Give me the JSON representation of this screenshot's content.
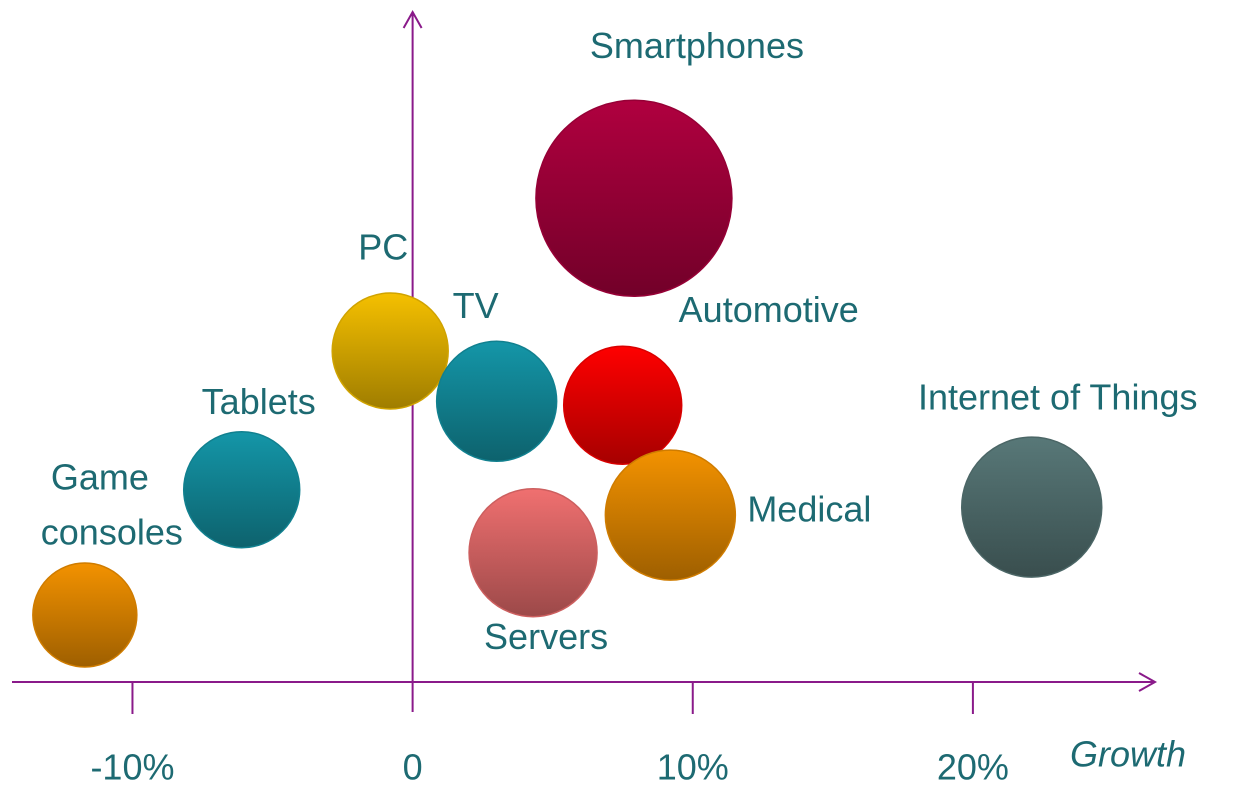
{
  "chart_data": {
    "type": "bubble",
    "xlabel": "Growth",
    "xlim": [
      -14.3,
      26.5
    ],
    "xticks": [
      {
        "value": -10,
        "label": "-10%"
      },
      0,
      {
        "value": 10,
        "label": "10%"
      },
      {
        "value": 20,
        "label": "20%"
      }
    ],
    "ylim": [
      0,
      100
    ],
    "labels": [
      [
        "Game",
        "consoles"
      ],
      [
        "Tablets"
      ],
      [
        "PC"
      ],
      [
        "TV"
      ],
      [
        "Servers"
      ],
      [
        "Automotive"
      ],
      [
        "Medical"
      ],
      [
        "Smartphones"
      ],
      [
        "Internet of Things"
      ]
    ],
    "x": [
      -11.7,
      -6.1,
      -0.8,
      3.0,
      4.3,
      7.5,
      9.2,
      7.9,
      22.1
    ],
    "values": [
      10,
      28.7,
      49.4,
      41.9,
      19.3,
      41.3,
      24.9,
      72.2,
      26.1
    ],
    "sizes": [
      52,
      58,
      58,
      60,
      64,
      59,
      65,
      98,
      70
    ],
    "colors": [
      "#f39200",
      "#1496a8",
      "#f5c000",
      "#1496a8",
      "#f07070",
      "#ff0000",
      "#f39200",
      "#b0003f",
      "#587878"
    ]
  }
}
